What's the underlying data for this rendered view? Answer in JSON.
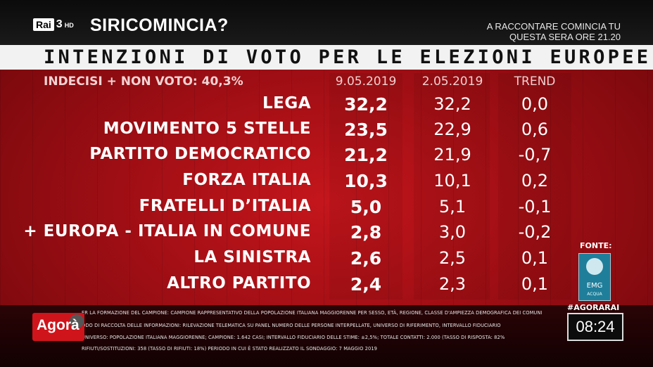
{
  "channel": {
    "rai": "Rai",
    "number": "3",
    "hd": "HD"
  },
  "show_title": "SIRICOMINCIA?",
  "promo": [
    "A RACCONTARE COMINCIA TU",
    "QUESTA SERA ORE 21.20"
  ],
  "header_title": "INTENZIONI DI VOTO PER LE ELEZIONI EUROPEE",
  "table": {
    "undecided": "INDECISI + NON VOTO: 40,3%",
    "columns": [
      "9.05.2019",
      "2.05.2019",
      "TREND"
    ],
    "rows": [
      {
        "party": "LEGA",
        "current": "32,2",
        "previous": "32,2",
        "trend": "0,0"
      },
      {
        "party": "MOVIMENTO 5 STELLE",
        "current": "23,5",
        "previous": "22,9",
        "trend": "0,6"
      },
      {
        "party": "PARTITO DEMOCRATICO",
        "current": "21,2",
        "previous": "21,9",
        "trend": "-0,7"
      },
      {
        "party": "FORZA ITALIA",
        "current": "10,3",
        "previous": "10,1",
        "trend": "0,2"
      },
      {
        "party": "FRATELLI D’ITALIA",
        "current": "5,0",
        "previous": "5,1",
        "trend": "-0,1"
      },
      {
        "party": "+ EUROPA - ITALIA IN COMUNE",
        "current": "2,8",
        "previous": "3,0",
        "trend": "-0,2"
      },
      {
        "party": "LA SINISTRA",
        "current": "2,6",
        "previous": "2,5",
        "trend": "0,1"
      },
      {
        "party": "ALTRO PARTITO",
        "current": "2,4",
        "previous": "2,3",
        "trend": "0,1"
      }
    ]
  },
  "footer": {
    "lines": [
      "ER LA FORMAZIONE DEL CAMPIONE: CAMPIONE RAPPRESENTATIVO DELLA POPOLAZIONE ITALIANA MAGGIORENNE PER SESSO, ETÀ, REGIONE, CLASSE D'AMPIEZZA DEMOGRAFICA DEI COMUNI",
      "ODO DI RACCOLTA DELLE INFORMAZIONI: RILEVAZIONE TELEMATICA SU PANEL NUMERO DELLE PERSONE INTERPELLATE, UNIVERSO DI RIFERIMENTO, INTERVALLO FIDUCIARIO",
      "UNIVERSO: POPOLAZIONE ITALIANA MAGGIORENNE; CAMPIONE: 1.642 CASI; INTERVALLO FIDUCIARIO DELLE STIME: ±2,5%; TOTALE CONTATTI: 2.000 (TASSO DI RISPOSTA: 82%",
      "RIFIUTI/SOSTITUZIONI: 358 (TASSO DI RIFIUTI: 18%) PERIODO IN CUI È STATO REALIZZATO IL SONDAGGIO: 7 MAGGIO 2019"
    ],
    "program": "Agorà",
    "source_label": "FONTE:",
    "source_name": "EMG",
    "source_sub": "ACQUA",
    "hashtag": "#AGORARAI",
    "clock": "08:24"
  }
}
